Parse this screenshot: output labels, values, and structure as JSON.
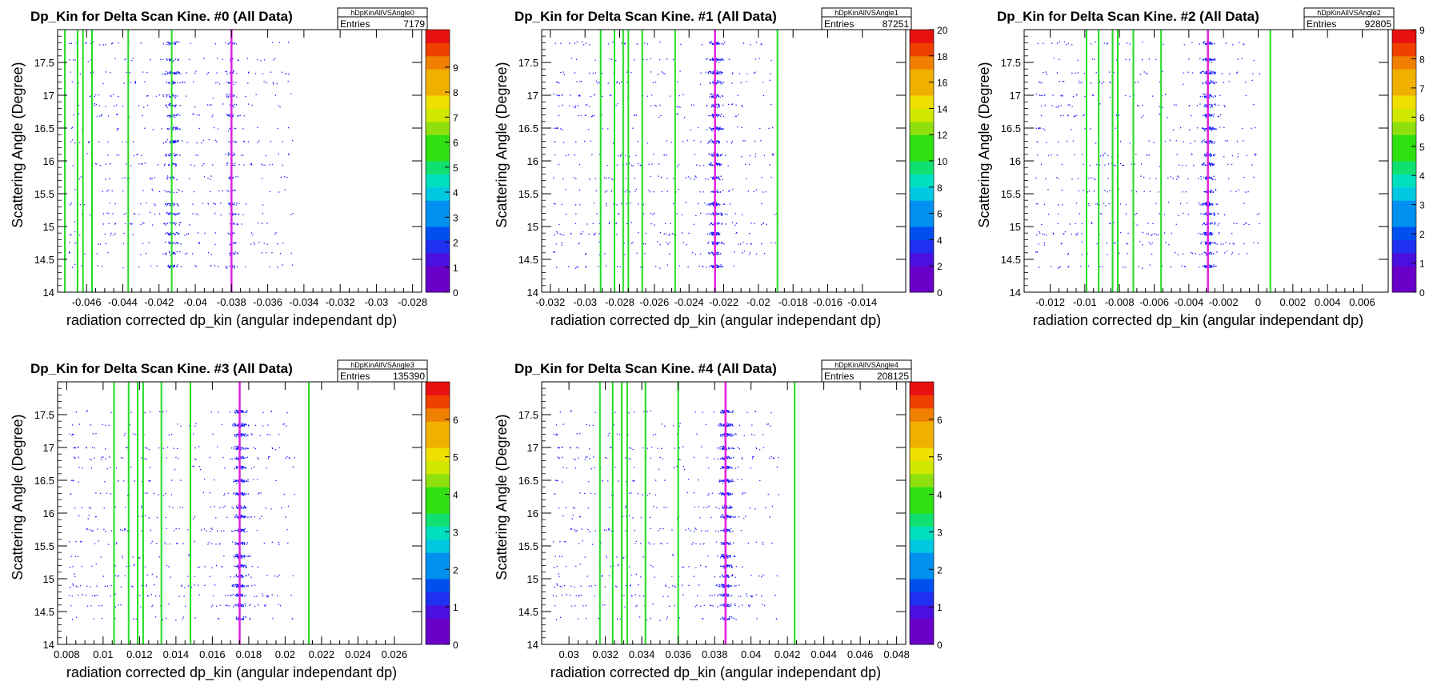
{
  "page": {
    "background": "#ffffff"
  },
  "chart_data": [
    {
      "type": "heatmap",
      "title": "Dp_Kin for Delta Scan Kine. #0 (All Data)",
      "stats_name": "hDpKinAllVSAngle0",
      "stats_label": "Entries",
      "entries": "7179",
      "xlabel": "radiation corrected dp_kin (angular independant dp)",
      "ylabel": "Scattering Angle (Degree)",
      "xlim": [
        -0.0476,
        -0.0275
      ],
      "ylim": [
        14,
        18
      ],
      "xticks": [
        "-0.046",
        "-0.044",
        "-0.042",
        "-0.04",
        "-0.038",
        "-0.036",
        "-0.034",
        "-0.032",
        "-0.03",
        "-0.028"
      ],
      "xtick_values": [
        -0.046,
        -0.044,
        -0.042,
        -0.04,
        -0.038,
        -0.036,
        -0.034,
        -0.032,
        -0.03,
        -0.028
      ],
      "yticks": [
        "14",
        "14.5",
        "15",
        "15.5",
        "16",
        "16.5",
        "17",
        "17.5"
      ],
      "ytick_values": [
        14,
        14.5,
        15,
        15.5,
        16,
        16.5,
        17,
        17.5
      ],
      "zlim": [
        0,
        10.5
      ],
      "zticks": [
        "0",
        "1",
        "2",
        "3",
        "4",
        "5",
        "6",
        "7",
        "8",
        "9"
      ],
      "ztick_values": [
        0,
        1,
        2,
        3,
        4,
        5,
        6,
        7,
        8,
        9
      ],
      "green_lines": [
        -0.0472,
        -0.0465,
        -0.0462,
        -0.0457,
        -0.0437,
        -0.0413
      ],
      "magenta_lines": [
        -0.038
      ],
      "dense_center": -0.0413,
      "cluster_center": -0.038,
      "density": 0.35,
      "ymax_data": 17.9
    },
    {
      "type": "heatmap",
      "title": "Dp_Kin for Delta Scan Kine. #1 (All Data)",
      "stats_name": "hDpKinAllVSAngle1",
      "stats_label": "Entries",
      "entries": "87251",
      "xlabel": "radiation corrected dp_kin (angular independant dp)",
      "ylabel": "Scattering Angle (Degree)",
      "xlim": [
        -0.0325,
        -0.0115
      ],
      "ylim": [
        14,
        18
      ],
      "xticks": [
        "-0.032",
        "-0.03",
        "-0.028",
        "-0.026",
        "-0.024",
        "-0.022",
        "-0.02",
        "-0.018",
        "-0.016",
        "-0.014"
      ],
      "xtick_values": [
        -0.032,
        -0.03,
        -0.028,
        -0.026,
        -0.024,
        -0.022,
        -0.02,
        -0.018,
        -0.016,
        -0.014
      ],
      "yticks": [
        "14",
        "14.5",
        "15",
        "15.5",
        "16",
        "16.5",
        "17",
        "17.5"
      ],
      "ytick_values": [
        14,
        14.5,
        15,
        15.5,
        16,
        16.5,
        17,
        17.5
      ],
      "zlim": [
        0,
        20
      ],
      "zticks": [
        "0",
        "2",
        "4",
        "6",
        "8",
        "10",
        "12",
        "14",
        "16",
        "18",
        "20"
      ],
      "ztick_values": [
        0,
        2,
        4,
        6,
        8,
        10,
        12,
        14,
        16,
        18,
        20
      ],
      "green_lines": [
        -0.0291,
        -0.0283,
        -0.0278,
        -0.0275,
        -0.0267,
        -0.0248,
        -0.0189
      ],
      "magenta_lines": [
        -0.0225
      ],
      "dense_center": -0.0225,
      "cluster_center": -0.0225,
      "density": 1.0,
      "ymax_data": 17.95
    },
    {
      "type": "heatmap",
      "title": "Dp_Kin for Delta Scan Kine. #2 (All Data)",
      "stats_name": "hDpKinAllVSAngle2",
      "stats_label": "Entries",
      "entries": "92805",
      "xlabel": "radiation corrected dp_kin (angular independant dp)",
      "ylabel": "Scattering Angle (Degree)",
      "xlim": [
        -0.0135,
        0.0075
      ],
      "ylim": [
        14,
        18
      ],
      "xticks": [
        "-0.012",
        "-0.01",
        "-0.008",
        "-0.006",
        "-0.004",
        "-0.002",
        "0",
        "0.002",
        "0.004",
        "0.006"
      ],
      "xtick_values": [
        -0.012,
        -0.01,
        -0.008,
        -0.006,
        -0.004,
        -0.002,
        0,
        0.002,
        0.004,
        0.006
      ],
      "yticks": [
        "14",
        "14.5",
        "15",
        "15.5",
        "16",
        "16.5",
        "17",
        "17.5"
      ],
      "ytick_values": [
        14,
        14.5,
        15,
        15.5,
        16,
        16.5,
        17,
        17.5
      ],
      "zlim": [
        0,
        9
      ],
      "zticks": [
        "0",
        "1",
        "2",
        "3",
        "4",
        "5",
        "6",
        "7",
        "8",
        "9"
      ],
      "ztick_values": [
        0,
        1,
        2,
        3,
        4,
        5,
        6,
        7,
        8,
        9
      ],
      "green_lines": [
        -0.0099,
        -0.0092,
        -0.0084,
        -0.0081,
        -0.0072,
        -0.0056,
        0.0007
      ],
      "magenta_lines": [
        -0.0029
      ],
      "dense_center": -0.0029,
      "cluster_center": -0.0029,
      "density": 0.85,
      "ymax_data": 17.95
    },
    {
      "type": "heatmap",
      "title": "Dp_Kin for Delta Scan Kine. #3 (All Data)",
      "stats_name": "hDpKinAllVSAngle3",
      "stats_label": "Entries",
      "entries": "135390",
      "xlabel": "radiation corrected dp_kin (angular independant dp)",
      "ylabel": "Scattering Angle (Degree)",
      "xlim": [
        0.0075,
        0.0275
      ],
      "ylim": [
        14,
        18
      ],
      "xticks": [
        "0.008",
        "0.01",
        "0.012",
        "0.014",
        "0.016",
        "0.018",
        "0.02",
        "0.022",
        "0.024",
        "0.026"
      ],
      "xtick_values": [
        0.008,
        0.01,
        0.012,
        0.014,
        0.016,
        0.018,
        0.02,
        0.022,
        0.024,
        0.026
      ],
      "yticks": [
        "14",
        "14.5",
        "15",
        "15.5",
        "16",
        "16.5",
        "17",
        "17.5"
      ],
      "ytick_values": [
        14,
        14.5,
        15,
        15.5,
        16,
        16.5,
        17,
        17.5
      ],
      "zlim": [
        0,
        7
      ],
      "zticks": [
        "0",
        "1",
        "2",
        "3",
        "4",
        "5",
        "6"
      ],
      "ztick_values": [
        0,
        1,
        2,
        3,
        4,
        5,
        6
      ],
      "green_lines": [
        0.0106,
        0.0114,
        0.0119,
        0.0122,
        0.0132,
        0.0148,
        0.0213
      ],
      "magenta_lines": [
        0.0175
      ],
      "dense_center": 0.0175,
      "cluster_center": 0.0175,
      "density": 0.9,
      "ymax_data": 17.6
    },
    {
      "type": "heatmap",
      "title": "Dp_Kin for Delta Scan Kine. #4 (All Data)",
      "stats_name": "hDpKinAllVSAngle4",
      "stats_label": "Entries",
      "entries": "208125",
      "xlabel": "radiation corrected dp_kin (angular independant dp)",
      "ylabel": "Scattering Angle (Degree)",
      "xlim": [
        0.0285,
        0.0485
      ],
      "ylim": [
        14,
        18
      ],
      "xticks": [
        "0.03",
        "0.032",
        "0.034",
        "0.036",
        "0.038",
        "0.04",
        "0.042",
        "0.044",
        "0.046",
        "0.048"
      ],
      "xtick_values": [
        0.03,
        0.032,
        0.034,
        0.036,
        0.038,
        0.04,
        0.042,
        0.044,
        0.046,
        0.048
      ],
      "yticks": [
        "14",
        "14.5",
        "15",
        "15.5",
        "16",
        "16.5",
        "17",
        "17.5"
      ],
      "ytick_values": [
        14,
        14.5,
        15,
        15.5,
        16,
        16.5,
        17,
        17.5
      ],
      "zlim": [
        0,
        7
      ],
      "zticks": [
        "0",
        "1",
        "2",
        "3",
        "4",
        "5",
        "6"
      ],
      "ztick_values": [
        0,
        1,
        2,
        3,
        4,
        5,
        6
      ],
      "green_lines": [
        0.0317,
        0.0324,
        0.0329,
        0.0332,
        0.0342,
        0.036,
        0.0424
      ],
      "magenta_lines": [
        0.0386
      ],
      "dense_center": 0.0386,
      "cluster_center": 0.0386,
      "density": 0.7,
      "ymax_data": 17.6
    }
  ],
  "colors": {
    "points": "#1b1bff",
    "points_dense": "#2a00c8",
    "green_line": "#22dd22",
    "magenta_line": "#e020e0",
    "axis": "#000000",
    "palette": [
      "#6a00c8",
      "#4a10e0",
      "#2030f0",
      "#0050f0",
      "#0090f0",
      "#00c8e0",
      "#00e0c0",
      "#10e070",
      "#30e010",
      "#90e010",
      "#d0e800",
      "#f0e000",
      "#f0b000",
      "#f08000",
      "#f04000",
      "#e81010"
    ]
  }
}
